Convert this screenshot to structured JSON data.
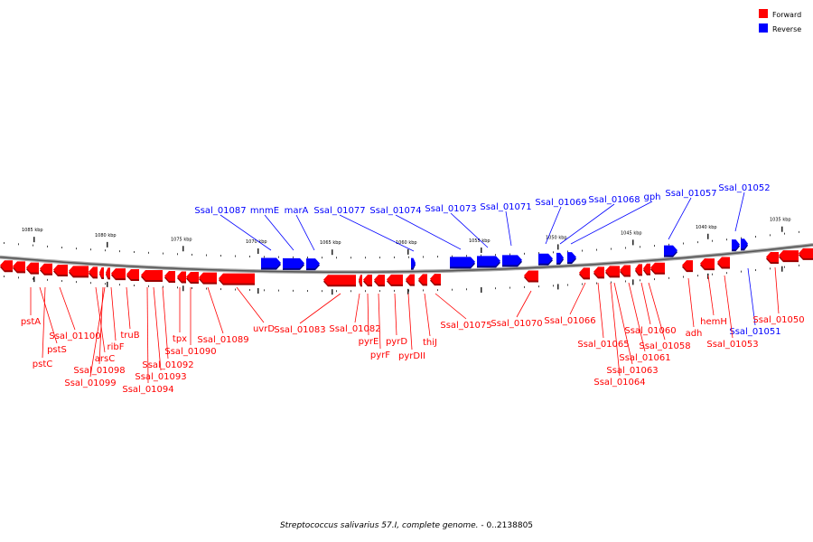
{
  "legend": [
    {
      "label": "Forward",
      "color": "#ff0000"
    },
    {
      "label": "Reverse",
      "color": "#0000ff"
    }
  ],
  "caption": {
    "organism": "Streptococcus salivarius 57.I, complete genome.",
    "range": " - 0..2138805"
  },
  "ticks": [
    "1085 kbp",
    "1080 kbp",
    "1075 kbp",
    "1070 kbp",
    "1065 kbp",
    "1060 kbp",
    "1055 kbp",
    "1050 kbp",
    "1045 kbp",
    "1040 kbp",
    "1035 kbp"
  ],
  "genes_reverse": [
    "Ssal_01087",
    "mnmE",
    "marA",
    "Ssal_01077",
    "Ssal_01074",
    "Ssal_01073",
    "Ssal_01071",
    "Ssal_01069",
    "Ssal_01068",
    "gph",
    "Ssal_01057",
    "Ssal_01052",
    "Ssal_01051"
  ],
  "genes_forward": [
    "pstA",
    "pstS",
    "pstC",
    "Ssal_01100",
    "arsC",
    "Ssal_01098",
    "Ssal_01099",
    "ribF",
    "truB",
    "Ssal_01092",
    "Ssal_01093",
    "Ssal_01094",
    "tpx",
    "Ssal_01090",
    "Ssal_01089",
    "uvrD",
    "Ssal_01083",
    "Ssal_01082",
    "pyrE",
    "pyrF",
    "pyrD",
    "pyrDII",
    "thiJ",
    "Ssal_01075",
    "Ssal_01070",
    "Ssal_01066",
    "Ssal_01065",
    "Ssal_01060",
    "Ssal_01058",
    "Ssal_01061",
    "Ssal_01063",
    "Ssal_01064",
    "adh",
    "hemH",
    "Ssal_01053",
    "Ssal_01050"
  ]
}
